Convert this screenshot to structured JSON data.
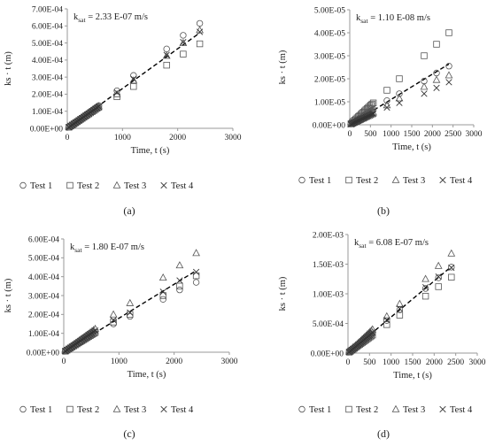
{
  "chart_data": [
    {
      "type": "scatter",
      "panel": "(a)",
      "annotation": {
        "k": "k",
        "sub": "sat",
        "rest": " = 2.33 E-07 m/s"
      },
      "xlabel": "Time, t (s)",
      "ylabel": "ks · t (m)",
      "xlim": [
        0,
        3000
      ],
      "ylim": [
        0,
        0.0007
      ],
      "xticks": [
        0,
        1000,
        2000,
        3000
      ],
      "yticks": [
        0,
        0.0001,
        0.0002,
        0.0003,
        0.0004,
        0.0005,
        0.0006,
        0.0007
      ],
      "ytick_labels": [
        "0.00E+00",
        "1.00E-04",
        "2.00E-04",
        "3.00E-04",
        "4.00E-04",
        "5.00E-04",
        "6.00E-04",
        "7.00E-04"
      ],
      "grid": false,
      "legend_position": "bottom",
      "fit_slope": 2.33e-07,
      "x": [
        30,
        60,
        90,
        120,
        150,
        180,
        210,
        240,
        270,
        300,
        330,
        360,
        390,
        420,
        450,
        480,
        510,
        540,
        570,
        900,
        1200,
        1800,
        2100,
        2400
      ],
      "series": [
        {
          "name": "Test 1",
          "marker": "circle",
          "values": [
            7e-06,
            1.4e-05,
            2.1e-05,
            2.8e-05,
            3.5e-05,
            4.2e-05,
            4.9e-05,
            5.6e-05,
            6.3e-05,
            7e-05,
            7.7e-05,
            8.4e-05,
            9.1e-05,
            9.8e-05,
            0.000105,
            0.000112,
            0.000119,
            0.000126,
            0.000133,
            0.00022,
            0.00031,
            0.000465,
            0.000545,
            0.000615
          ]
        },
        {
          "name": "Test 2",
          "marker": "square",
          "values": [
            6.5e-06,
            1.3e-05,
            1.95e-05,
            2.6e-05,
            3.25e-05,
            3.9e-05,
            4.55e-05,
            5.2e-05,
            5.85e-05,
            6.5e-05,
            7.15e-05,
            7.8e-05,
            8.45e-05,
            9.1e-05,
            9.75e-05,
            0.000104,
            0.0001105,
            0.000117,
            0.0001235,
            0.000185,
            0.000245,
            0.00037,
            0.000435,
            0.000495
          ]
        },
        {
          "name": "Test 3",
          "marker": "triangle",
          "values": [
            6.8e-06,
            1.36e-05,
            2.04e-05,
            2.72e-05,
            3.4e-05,
            4.08e-05,
            4.76e-05,
            5.44e-05,
            6.12e-05,
            6.8e-05,
            7.48e-05,
            8.16e-05,
            8.84e-05,
            9.52e-05,
            0.000102,
            0.0001088,
            0.0001156,
            0.0001224,
            0.0001292,
            0.0002,
            0.00028,
            0.000425,
            0.0005,
            0.000575
          ]
        },
        {
          "name": "Test 4",
          "marker": "x",
          "values": [
            6.7e-06,
            1.34e-05,
            2.01e-05,
            2.68e-05,
            3.35e-05,
            4.02e-05,
            4.69e-05,
            5.36e-05,
            6.03e-05,
            6.7e-05,
            7.37e-05,
            8.04e-05,
            8.71e-05,
            9.38e-05,
            0.0001005,
            0.0001072,
            0.0001139,
            0.0001206,
            0.0001273,
            0.00021,
            0.00029,
            0.00043,
            0.000505,
            0.000565
          ]
        }
      ]
    },
    {
      "type": "scatter",
      "panel": "(b)",
      "annotation": {
        "k": "k",
        "sub": "sat",
        "rest": " = 1.10 E-08 m/s"
      },
      "xlabel": "Time, t (s)",
      "ylabel": "ks · t (m)",
      "xlim": [
        0,
        3000
      ],
      "ylim": [
        0,
        5e-05
      ],
      "xticks": [
        0,
        500,
        1000,
        1500,
        2000,
        2500,
        3000
      ],
      "yticks": [
        0,
        1e-05,
        2e-05,
        3e-05,
        4e-05,
        5e-05
      ],
      "ytick_labels": [
        "0.00E+00",
        "1.00E-05",
        "2.00E-05",
        "3.00E-05",
        "4.00E-05",
        "5.00E-05"
      ],
      "grid": false,
      "legend_position": "bottom",
      "fit_slope": 1.1e-08,
      "x": [
        30,
        60,
        90,
        120,
        150,
        180,
        210,
        240,
        270,
        300,
        330,
        360,
        390,
        420,
        450,
        480,
        510,
        540,
        570,
        900,
        1200,
        1800,
        2100,
        2400
      ],
      "series": [
        {
          "name": "Test 1",
          "marker": "circle",
          "values": [
            3.5e-07,
            7e-07,
            1.05e-06,
            1.4e-06,
            1.75e-06,
            2.1e-06,
            2.45e-06,
            2.8e-06,
            3.15e-06,
            3.5e-06,
            3.85e-06,
            4.2e-06,
            4.55e-06,
            4.9e-06,
            5.25e-06,
            5.6e-06,
            5.95e-06,
            6.3e-06,
            6.65e-06,
            1.05e-05,
            1.35e-05,
            1.9e-05,
            2.25e-05,
            2.55e-05
          ]
        },
        {
          "name": "Test 2",
          "marker": "square",
          "values": [
            5e-07,
            1e-06,
            1.5e-06,
            2e-06,
            2.5e-06,
            3e-06,
            3.5e-06,
            4e-06,
            4.5e-06,
            5e-06,
            5.5e-06,
            6e-06,
            6.5e-06,
            7e-06,
            7.5e-06,
            8e-06,
            8.5e-06,
            9e-06,
            9.5e-06,
            1.5e-05,
            2e-05,
            3e-05,
            3.5e-05,
            4e-05
          ]
        },
        {
          "name": "Test 3",
          "marker": "triangle",
          "values": [
            2.8e-07,
            5.6e-07,
            8.4e-07,
            1.12e-06,
            1.4e-06,
            1.68e-06,
            1.96e-06,
            2.24e-06,
            2.52e-06,
            2.8e-06,
            3.08e-06,
            3.36e-06,
            3.64e-06,
            3.92e-06,
            4.2e-06,
            4.48e-06,
            4.76e-06,
            5.04e-06,
            5.32e-06,
            8.5e-06,
            1.15e-05,
            1.65e-05,
            1.95e-05,
            2.15e-05
          ]
        },
        {
          "name": "Test 4",
          "marker": "x",
          "values": [
            2.5e-07,
            5e-07,
            7.5e-07,
            1e-06,
            1.25e-06,
            1.5e-06,
            1.75e-06,
            2e-06,
            2.25e-06,
            2.5e-06,
            2.75e-06,
            3e-06,
            3.25e-06,
            3.5e-06,
            3.75e-06,
            4e-06,
            4.25e-06,
            4.5e-06,
            4.75e-06,
            7.5e-06,
            9.5e-06,
            1.35e-05,
            1.6e-05,
            1.85e-05
          ]
        }
      ]
    },
    {
      "type": "scatter",
      "panel": "(c)",
      "annotation": {
        "k": "k",
        "sub": "sat",
        "rest": " = 1.80 E-07 m/s"
      },
      "xlabel": "Time, t (s)",
      "ylabel": "ks · t (m)",
      "xlim": [
        0,
        3000
      ],
      "ylim": [
        0,
        0.0006
      ],
      "xticks": [
        0,
        1000,
        2000,
        3000
      ],
      "yticks": [
        0,
        0.0001,
        0.0002,
        0.0003,
        0.0004,
        0.0005,
        0.0006
      ],
      "ytick_labels": [
        "0.00E+00",
        "1.00E-04",
        "2.00E-04",
        "3.00E-04",
        "4.00E-04",
        "5.00E-04",
        "6.00E-04"
      ],
      "grid": false,
      "legend_position": "bottom",
      "fit_slope": 1.8e-07,
      "x": [
        30,
        60,
        90,
        120,
        150,
        180,
        210,
        240,
        270,
        300,
        330,
        360,
        390,
        420,
        450,
        480,
        510,
        540,
        570,
        900,
        1200,
        1800,
        2100,
        2400
      ],
      "series": [
        {
          "name": "Test 1",
          "marker": "circle",
          "values": [
            5.2e-06,
            1.04e-05,
            1.56e-05,
            2.08e-05,
            2.6e-05,
            3.12e-05,
            3.64e-05,
            4.16e-05,
            4.68e-05,
            5.2e-05,
            5.72e-05,
            6.24e-05,
            6.76e-05,
            7.28e-05,
            7.8e-05,
            8.32e-05,
            8.84e-05,
            9.36e-05,
            9.88e-05,
            0.00015,
            0.00019,
            0.00028,
            0.00033,
            0.00037
          ]
        },
        {
          "name": "Test 2",
          "marker": "square",
          "values": [
            5.5e-06,
            1.1e-05,
            1.65e-05,
            2.2e-05,
            2.75e-05,
            3.3e-05,
            3.85e-05,
            4.4e-05,
            4.95e-05,
            5.5e-05,
            6.05e-05,
            6.6e-05,
            7.15e-05,
            7.7e-05,
            8.25e-05,
            8.8e-05,
            9.35e-05,
            9.9e-05,
            0.0001045,
            0.00016,
            0.0002,
            0.0003,
            0.00035,
            0.000405
          ]
        },
        {
          "name": "Test 3",
          "marker": "triangle",
          "values": [
            6.5e-06,
            1.3e-05,
            1.95e-05,
            2.6e-05,
            3.25e-05,
            3.9e-05,
            4.55e-05,
            5.2e-05,
            5.85e-05,
            6.5e-05,
            7.15e-05,
            7.8e-05,
            8.45e-05,
            9.1e-05,
            9.75e-05,
            0.000104,
            0.0001105,
            0.000117,
            0.0001235,
            0.0002,
            0.00026,
            0.000395,
            0.00046,
            0.000525
          ]
        },
        {
          "name": "Test 4",
          "marker": "x",
          "values": [
            6e-06,
            1.2e-05,
            1.8e-05,
            2.4e-05,
            3e-05,
            3.6e-05,
            4.2e-05,
            4.8e-05,
            5.4e-05,
            6e-05,
            6.6e-05,
            7.2e-05,
            7.8e-05,
            8.4e-05,
            9e-05,
            9.6e-05,
            0.000102,
            0.000108,
            0.000114,
            0.00017,
            0.00021,
            0.00032,
            0.00038,
            0.000425
          ]
        }
      ]
    },
    {
      "type": "scatter",
      "panel": "(d)",
      "annotation": {
        "k": "k",
        "sub": "sat",
        "rest": " = 6.08 E-07 m/s"
      },
      "xlabel": "Time, t (s)",
      "ylabel": "ks · t (m)",
      "xlim": [
        0,
        3000
      ],
      "ylim": [
        0,
        0.002
      ],
      "xticks": [
        0,
        500,
        1000,
        1500,
        2000,
        2500,
        3000
      ],
      "yticks": [
        0,
        0.0005,
        0.001,
        0.0015,
        0.002
      ],
      "ytick_labels": [
        "0.00E+00",
        "5.00E-04",
        "1.00E-03",
        "1.50E-03",
        "2.00E-03"
      ],
      "grid": false,
      "legend_position": "bottom",
      "fit_slope": 6.08e-07,
      "x": [
        30,
        60,
        90,
        120,
        150,
        180,
        210,
        240,
        270,
        300,
        330,
        360,
        390,
        420,
        450,
        480,
        510,
        540,
        570,
        900,
        1200,
        1800,
        2100,
        2400
      ],
      "series": [
        {
          "name": "Test 1",
          "marker": "circle",
          "values": [
            1.8e-05,
            3.6e-05,
            5.4e-05,
            7.2e-05,
            9e-05,
            0.000108,
            0.000126,
            0.000144,
            0.000162,
            0.00018,
            0.000198,
            0.000216,
            0.000234,
            0.000252,
            0.00027,
            0.000288,
            0.000306,
            0.000324,
            0.000342,
            0.00055,
            0.00073,
            0.00109,
            0.00127,
            0.00145
          ]
        },
        {
          "name": "Test 2",
          "marker": "square",
          "values": [
            1.6e-05,
            3.2e-05,
            4.8e-05,
            6.4e-05,
            8e-05,
            9.6e-05,
            0.000112,
            0.000128,
            0.000144,
            0.00016,
            0.000176,
            0.000192,
            0.000208,
            0.000224,
            0.00024,
            0.000256,
            0.000272,
            0.000288,
            0.000304,
            0.00048,
            0.00064,
            0.00096,
            0.00112,
            0.00128
          ]
        },
        {
          "name": "Test 3",
          "marker": "triangle",
          "values": [
            2.1e-05,
            4.2e-05,
            6.3e-05,
            8.4e-05,
            0.000105,
            0.000126,
            0.000147,
            0.000168,
            0.000189,
            0.00021,
            0.000231,
            0.000252,
            0.000273,
            0.000294,
            0.000315,
            0.000336,
            0.000357,
            0.000378,
            0.000399,
            0.00062,
            0.00083,
            0.00125,
            0.00147,
            0.00168
          ]
        },
        {
          "name": "Test 4",
          "marker": "x",
          "values": [
            1.8e-05,
            3.6e-05,
            5.4e-05,
            7.2e-05,
            9e-05,
            0.000108,
            0.000126,
            0.000144,
            0.000162,
            0.00018,
            0.000198,
            0.000216,
            0.000234,
            0.000252,
            0.00027,
            0.000288,
            0.000306,
            0.000324,
            0.000342,
            0.00056,
            0.00075,
            0.00111,
            0.00129,
            0.00144
          ]
        }
      ]
    }
  ]
}
